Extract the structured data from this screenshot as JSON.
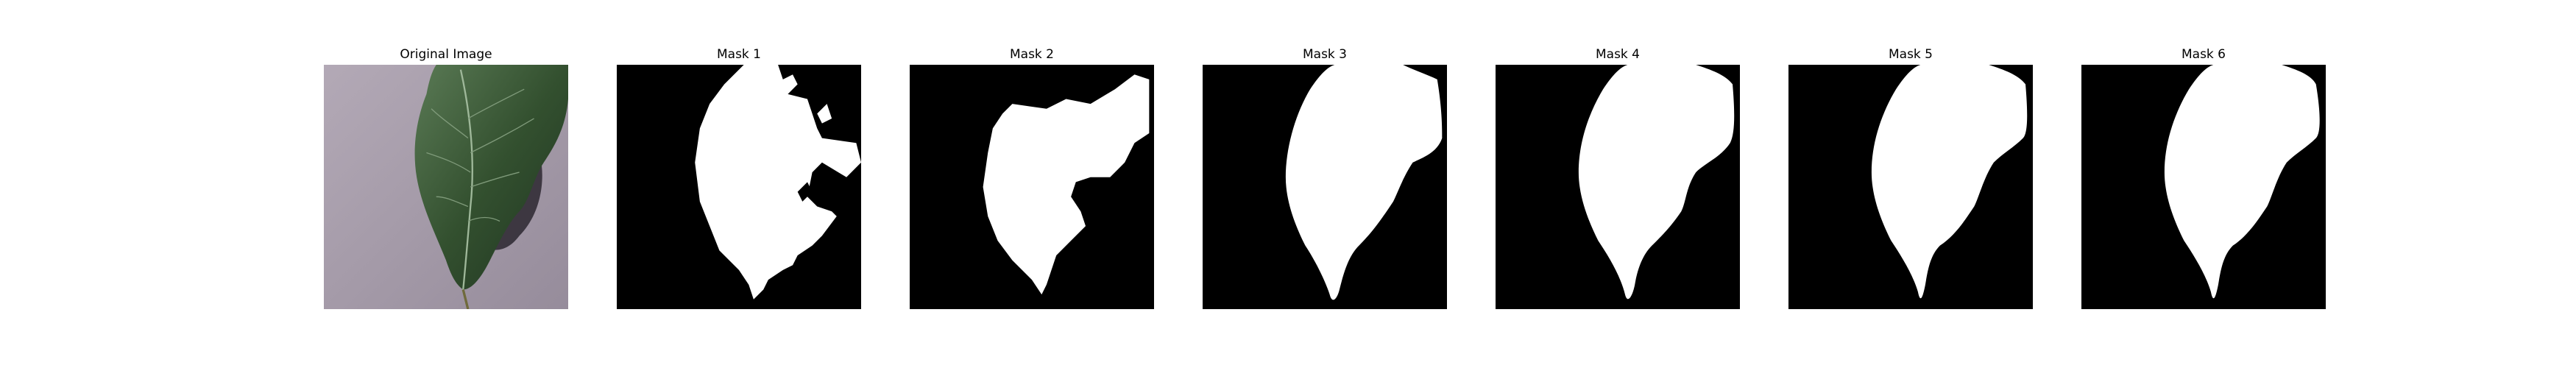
{
  "panels": [
    {
      "title": "Original Image"
    },
    {
      "title": "Mask 1"
    },
    {
      "title": "Mask 2"
    },
    {
      "title": "Mask 3"
    },
    {
      "title": "Mask 4"
    },
    {
      "title": "Mask 5"
    },
    {
      "title": "Mask 6"
    }
  ],
  "colors": {
    "background": "#ffffff",
    "mask_background": "#000000",
    "mask_foreground": "#ffffff",
    "surface": "#a49aa8",
    "leaf": "#2f4a2c"
  }
}
